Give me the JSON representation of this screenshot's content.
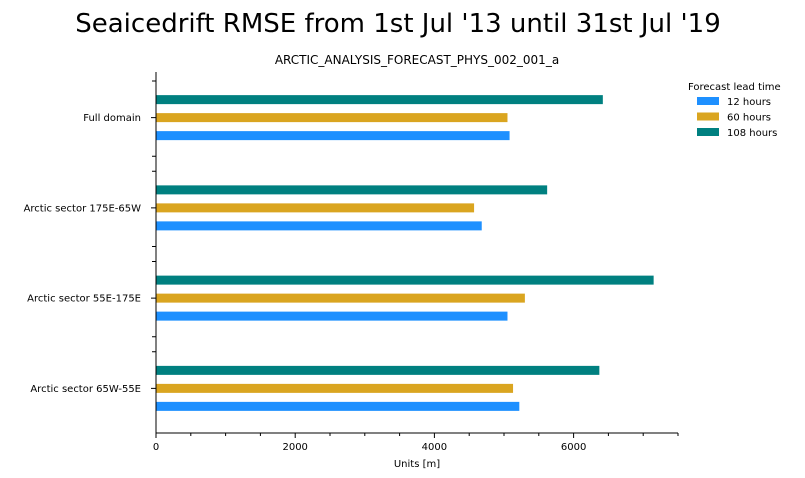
{
  "chart_data": {
    "type": "bar",
    "orientation": "horizontal",
    "title": "Seaicedrift RMSE from 1st Jul '13 until 31st Jul '19",
    "subtitle": "ARCTIC_ANALYSIS_FORECAST_PHYS_002_001_a",
    "xlabel": "Units [m]",
    "ylabel": "",
    "xlim": [
      0,
      7500
    ],
    "xticks": [
      0,
      2000,
      4000,
      6000
    ],
    "categories": [
      "Full domain",
      "Arctic sector 175E-65W",
      "Arctic sector 55E-175E",
      "Arctic sector 65W-55E"
    ],
    "legend_title": "Forecast lead time",
    "legend_position": "top-right, outside plot",
    "grid": false,
    "series": [
      {
        "name": "12 hours",
        "color": "#1e90ff",
        "values": [
          5080,
          4680,
          5050,
          5220
        ]
      },
      {
        "name": "60 hours",
        "color": "#daa520",
        "values": [
          5050,
          4570,
          5300,
          5130
        ]
      },
      {
        "name": "108 hours",
        "color": "#008080",
        "values": [
          6420,
          5620,
          7150,
          6370
        ]
      }
    ]
  }
}
